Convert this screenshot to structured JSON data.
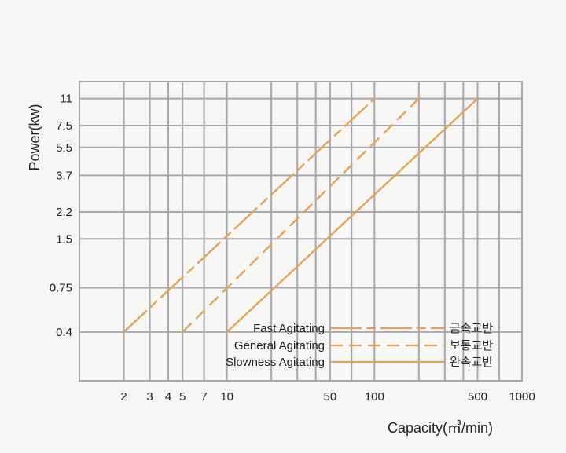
{
  "chart_data": {
    "type": "line",
    "xlabel": "Capacity(㎥/min)",
    "ylabel": "Power(kw)",
    "x_scale": "log",
    "y_scale": "log",
    "xlim": [
      1,
      1000
    ],
    "ylim": [
      0.2,
      14
    ],
    "x_ticks": [
      {
        "value": 2,
        "label": "2"
      },
      {
        "value": 3,
        "label": "3"
      },
      {
        "value": 4,
        "label": "4"
      },
      {
        "value": 5,
        "label": "5"
      },
      {
        "value": 7,
        "label": "7"
      },
      {
        "value": 10,
        "label": "10"
      },
      {
        "value": 50,
        "label": "50"
      },
      {
        "value": 100,
        "label": "100"
      },
      {
        "value": 500,
        "label": "500"
      },
      {
        "value": 1000,
        "label": "1000"
      }
    ],
    "x_grid": [
      2,
      3,
      4,
      5,
      7,
      10,
      20,
      30,
      40,
      50,
      70,
      100,
      200,
      300,
      400,
      500,
      700,
      1000
    ],
    "y_ticks": [
      {
        "value": 0.4,
        "label": "0.4"
      },
      {
        "value": 0.75,
        "label": "0.75"
      },
      {
        "value": 1.5,
        "label": "1.5"
      },
      {
        "value": 2.2,
        "label": "2.2"
      },
      {
        "value": 3.7,
        "label": "3.7"
      },
      {
        "value": 5.5,
        "label": "5.5"
      },
      {
        "value": 7.5,
        "label": "7.5"
      },
      {
        "value": 11,
        "label": "11"
      }
    ],
    "grid": true,
    "legend_position": "bottom-right",
    "series": [
      {
        "name": "Fast Agitating",
        "name_ko": "금속교반",
        "dash": "long-dash",
        "color": "#e8a258",
        "x": [
          2,
          100
        ],
        "y": [
          0.4,
          11
        ]
      },
      {
        "name": "General Agitating",
        "name_ko": "보통교반",
        "dash": "dash",
        "color": "#e8a258",
        "x": [
          5,
          200
        ],
        "y": [
          0.4,
          11
        ]
      },
      {
        "name": "Slowness Agitating",
        "name_ko": "완속교반",
        "dash": "solid",
        "color": "#e8a258",
        "x": [
          10,
          500
        ],
        "y": [
          0.4,
          11
        ]
      }
    ],
    "colors": {
      "grid": "#a7a7ad",
      "line": "#e8a258",
      "text": "#222222",
      "background": "#f6f6f4"
    }
  }
}
